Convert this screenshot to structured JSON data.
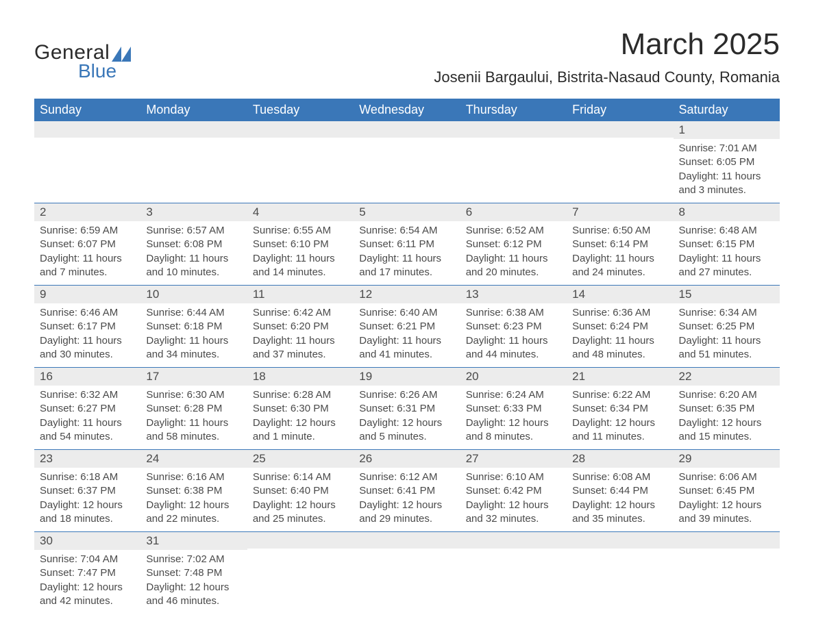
{
  "logo": {
    "text1": "General",
    "text2": "Blue",
    "shape_color": "#3a77b8",
    "text1_color": "#2b2b2b"
  },
  "title": "March 2025",
  "location": "Josenii Bargaului, Bistrita-Nasaud County, Romania",
  "header_bg": "#3a77b8",
  "header_fg": "#ffffff",
  "daynum_bg": "#ececec",
  "text_color": "#4a4a4a",
  "border_color": "#3a77b8",
  "weekdays": [
    "Sunday",
    "Monday",
    "Tuesday",
    "Wednesday",
    "Thursday",
    "Friday",
    "Saturday"
  ],
  "weeks": [
    [
      {
        "n": "",
        "sr": "",
        "ss": "",
        "dl": ""
      },
      {
        "n": "",
        "sr": "",
        "ss": "",
        "dl": ""
      },
      {
        "n": "",
        "sr": "",
        "ss": "",
        "dl": ""
      },
      {
        "n": "",
        "sr": "",
        "ss": "",
        "dl": ""
      },
      {
        "n": "",
        "sr": "",
        "ss": "",
        "dl": ""
      },
      {
        "n": "",
        "sr": "",
        "ss": "",
        "dl": ""
      },
      {
        "n": "1",
        "sr": "Sunrise: 7:01 AM",
        "ss": "Sunset: 6:05 PM",
        "dl": "Daylight: 11 hours and 3 minutes."
      }
    ],
    [
      {
        "n": "2",
        "sr": "Sunrise: 6:59 AM",
        "ss": "Sunset: 6:07 PM",
        "dl": "Daylight: 11 hours and 7 minutes."
      },
      {
        "n": "3",
        "sr": "Sunrise: 6:57 AM",
        "ss": "Sunset: 6:08 PM",
        "dl": "Daylight: 11 hours and 10 minutes."
      },
      {
        "n": "4",
        "sr": "Sunrise: 6:55 AM",
        "ss": "Sunset: 6:10 PM",
        "dl": "Daylight: 11 hours and 14 minutes."
      },
      {
        "n": "5",
        "sr": "Sunrise: 6:54 AM",
        "ss": "Sunset: 6:11 PM",
        "dl": "Daylight: 11 hours and 17 minutes."
      },
      {
        "n": "6",
        "sr": "Sunrise: 6:52 AM",
        "ss": "Sunset: 6:12 PM",
        "dl": "Daylight: 11 hours and 20 minutes."
      },
      {
        "n": "7",
        "sr": "Sunrise: 6:50 AM",
        "ss": "Sunset: 6:14 PM",
        "dl": "Daylight: 11 hours and 24 minutes."
      },
      {
        "n": "8",
        "sr": "Sunrise: 6:48 AM",
        "ss": "Sunset: 6:15 PM",
        "dl": "Daylight: 11 hours and 27 minutes."
      }
    ],
    [
      {
        "n": "9",
        "sr": "Sunrise: 6:46 AM",
        "ss": "Sunset: 6:17 PM",
        "dl": "Daylight: 11 hours and 30 minutes."
      },
      {
        "n": "10",
        "sr": "Sunrise: 6:44 AM",
        "ss": "Sunset: 6:18 PM",
        "dl": "Daylight: 11 hours and 34 minutes."
      },
      {
        "n": "11",
        "sr": "Sunrise: 6:42 AM",
        "ss": "Sunset: 6:20 PM",
        "dl": "Daylight: 11 hours and 37 minutes."
      },
      {
        "n": "12",
        "sr": "Sunrise: 6:40 AM",
        "ss": "Sunset: 6:21 PM",
        "dl": "Daylight: 11 hours and 41 minutes."
      },
      {
        "n": "13",
        "sr": "Sunrise: 6:38 AM",
        "ss": "Sunset: 6:23 PM",
        "dl": "Daylight: 11 hours and 44 minutes."
      },
      {
        "n": "14",
        "sr": "Sunrise: 6:36 AM",
        "ss": "Sunset: 6:24 PM",
        "dl": "Daylight: 11 hours and 48 minutes."
      },
      {
        "n": "15",
        "sr": "Sunrise: 6:34 AM",
        "ss": "Sunset: 6:25 PM",
        "dl": "Daylight: 11 hours and 51 minutes."
      }
    ],
    [
      {
        "n": "16",
        "sr": "Sunrise: 6:32 AM",
        "ss": "Sunset: 6:27 PM",
        "dl": "Daylight: 11 hours and 54 minutes."
      },
      {
        "n": "17",
        "sr": "Sunrise: 6:30 AM",
        "ss": "Sunset: 6:28 PM",
        "dl": "Daylight: 11 hours and 58 minutes."
      },
      {
        "n": "18",
        "sr": "Sunrise: 6:28 AM",
        "ss": "Sunset: 6:30 PM",
        "dl": "Daylight: 12 hours and 1 minute."
      },
      {
        "n": "19",
        "sr": "Sunrise: 6:26 AM",
        "ss": "Sunset: 6:31 PM",
        "dl": "Daylight: 12 hours and 5 minutes."
      },
      {
        "n": "20",
        "sr": "Sunrise: 6:24 AM",
        "ss": "Sunset: 6:33 PM",
        "dl": "Daylight: 12 hours and 8 minutes."
      },
      {
        "n": "21",
        "sr": "Sunrise: 6:22 AM",
        "ss": "Sunset: 6:34 PM",
        "dl": "Daylight: 12 hours and 11 minutes."
      },
      {
        "n": "22",
        "sr": "Sunrise: 6:20 AM",
        "ss": "Sunset: 6:35 PM",
        "dl": "Daylight: 12 hours and 15 minutes."
      }
    ],
    [
      {
        "n": "23",
        "sr": "Sunrise: 6:18 AM",
        "ss": "Sunset: 6:37 PM",
        "dl": "Daylight: 12 hours and 18 minutes."
      },
      {
        "n": "24",
        "sr": "Sunrise: 6:16 AM",
        "ss": "Sunset: 6:38 PM",
        "dl": "Daylight: 12 hours and 22 minutes."
      },
      {
        "n": "25",
        "sr": "Sunrise: 6:14 AM",
        "ss": "Sunset: 6:40 PM",
        "dl": "Daylight: 12 hours and 25 minutes."
      },
      {
        "n": "26",
        "sr": "Sunrise: 6:12 AM",
        "ss": "Sunset: 6:41 PM",
        "dl": "Daylight: 12 hours and 29 minutes."
      },
      {
        "n": "27",
        "sr": "Sunrise: 6:10 AM",
        "ss": "Sunset: 6:42 PM",
        "dl": "Daylight: 12 hours and 32 minutes."
      },
      {
        "n": "28",
        "sr": "Sunrise: 6:08 AM",
        "ss": "Sunset: 6:44 PM",
        "dl": "Daylight: 12 hours and 35 minutes."
      },
      {
        "n": "29",
        "sr": "Sunrise: 6:06 AM",
        "ss": "Sunset: 6:45 PM",
        "dl": "Daylight: 12 hours and 39 minutes."
      }
    ],
    [
      {
        "n": "30",
        "sr": "Sunrise: 7:04 AM",
        "ss": "Sunset: 7:47 PM",
        "dl": "Daylight: 12 hours and 42 minutes."
      },
      {
        "n": "31",
        "sr": "Sunrise: 7:02 AM",
        "ss": "Sunset: 7:48 PM",
        "dl": "Daylight: 12 hours and 46 minutes."
      },
      {
        "n": "",
        "sr": "",
        "ss": "",
        "dl": ""
      },
      {
        "n": "",
        "sr": "",
        "ss": "",
        "dl": ""
      },
      {
        "n": "",
        "sr": "",
        "ss": "",
        "dl": ""
      },
      {
        "n": "",
        "sr": "",
        "ss": "",
        "dl": ""
      },
      {
        "n": "",
        "sr": "",
        "ss": "",
        "dl": ""
      }
    ]
  ]
}
